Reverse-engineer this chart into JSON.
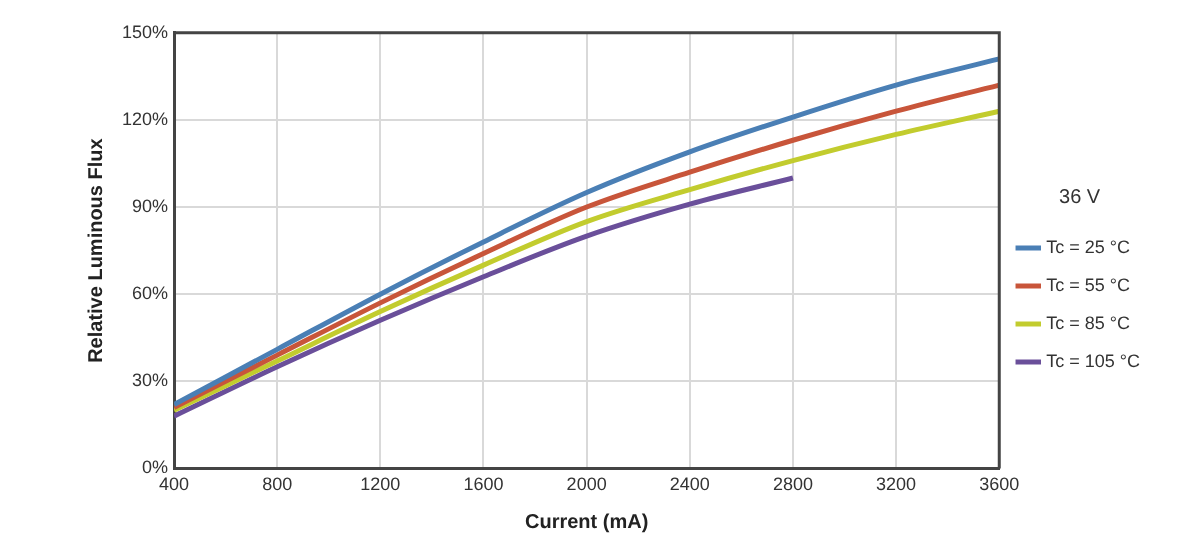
{
  "chart_data": {
    "type": "line",
    "xlabel": "Current (mA)",
    "ylabel": "Relative Luminous Flux",
    "legend_title": "36 V",
    "legend": "right",
    "grid": true,
    "marker": "none",
    "line_style": "solid",
    "xlim": [
      400,
      3600
    ],
    "xticks": [
      400,
      800,
      1200,
      1600,
      2000,
      2400,
      2800,
      3200,
      3600
    ],
    "ylim": [
      0,
      150
    ],
    "yticks": [
      {
        "value": 0,
        "label": "0%"
      },
      {
        "value": 30,
        "label": "30%"
      },
      {
        "value": 60,
        "label": "60%"
      },
      {
        "value": 90,
        "label": "90%"
      },
      {
        "value": 120,
        "label": "120%"
      },
      {
        "value": 150,
        "label": "150%"
      }
    ],
    "series": [
      {
        "name": "Tc = 25 °C",
        "color": "#4a7fb5",
        "x": [
          400,
          800,
          1200,
          1600,
          2000,
          2400,
          2800,
          3200,
          3600
        ],
        "values": [
          22,
          41,
          60,
          78,
          95,
          109,
          121,
          132,
          141
        ]
      },
      {
        "name": "Tc = 55 °C",
        "color": "#c8553a",
        "x": [
          400,
          800,
          1200,
          1600,
          2000,
          2400,
          2800,
          3200,
          3600
        ],
        "values": [
          21,
          39,
          57,
          74,
          90,
          102,
          113,
          123,
          132
        ]
      },
      {
        "name": "Tc = 85 °C",
        "color": "#c2cc2e",
        "x": [
          400,
          800,
          1200,
          1600,
          2000,
          2400,
          2800,
          3200,
          3600
        ],
        "values": [
          20,
          37,
          54,
          70,
          85,
          96,
          106,
          115,
          123
        ]
      },
      {
        "name": "Tc = 105 °C",
        "color": "#6a4f9a",
        "x": [
          400,
          800,
          1200,
          1600,
          2000,
          2400,
          2800
        ],
        "values": [
          18,
          35,
          51,
          66,
          80,
          91,
          100
        ]
      }
    ]
  }
}
